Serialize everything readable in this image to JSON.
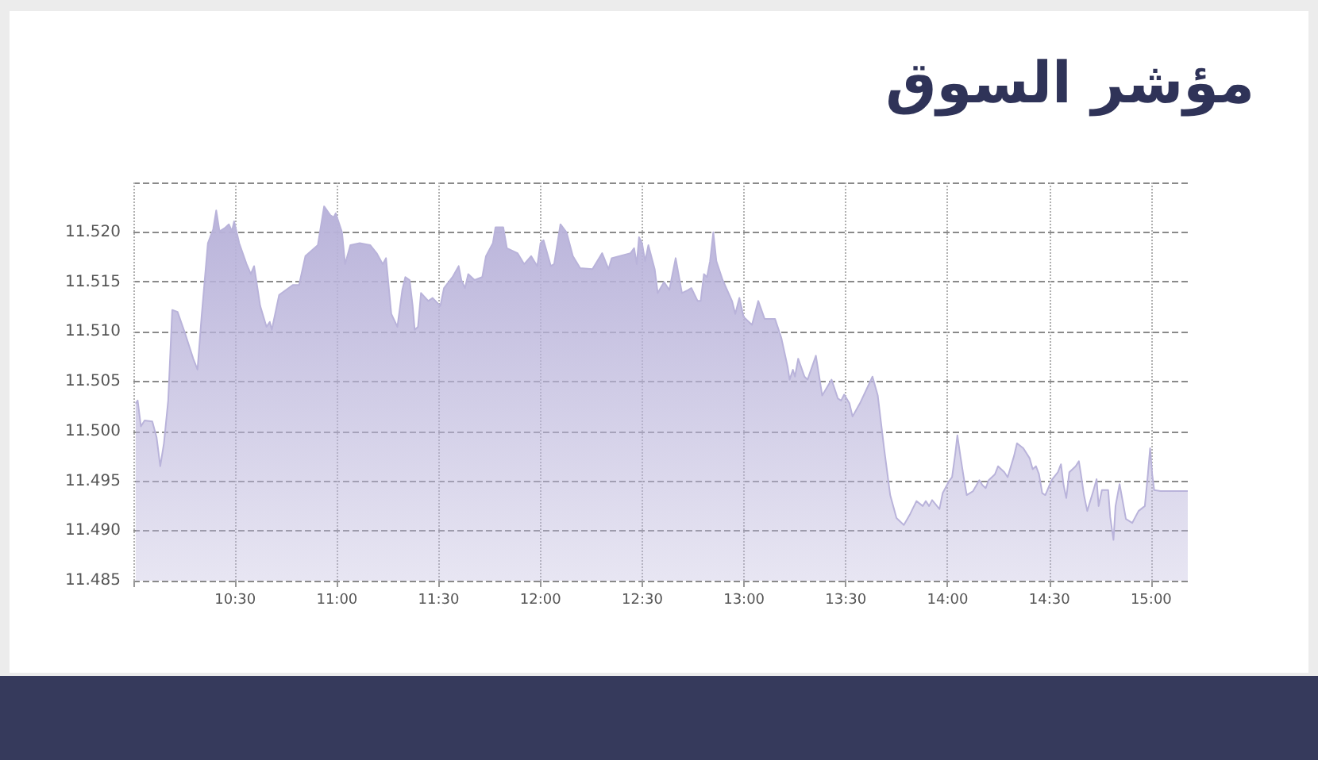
{
  "chart_data": {
    "type": "area",
    "title": "مؤشر السوق",
    "x": [
      10.011,
      10.021,
      10.037,
      10.055,
      10.093,
      10.114,
      10.132,
      10.15,
      10.171,
      10.191,
      10.217,
      10.253,
      10.294,
      10.315,
      10.335,
      10.366,
      10.392,
      10.407,
      10.423,
      10.448,
      10.469,
      10.484,
      10.495,
      10.52,
      10.556,
      10.577,
      10.593,
      10.623,
      10.654,
      10.67,
      10.68,
      10.716,
      10.783,
      10.814,
      10.845,
      10.906,
      10.937,
      10.968,
      10.984,
      10.994,
      11.025,
      11.04,
      11.066,
      11.112,
      11.164,
      11.195,
      11.225,
      11.241,
      11.267,
      11.297,
      11.321,
      11.336,
      11.357,
      11.372,
      11.382,
      11.398,
      11.413,
      11.449,
      11.47,
      11.508,
      11.526,
      11.568,
      11.598,
      11.611,
      11.629,
      11.645,
      11.676,
      11.714,
      11.732,
      11.766,
      11.779,
      11.817,
      11.835,
      11.887,
      11.92,
      11.954,
      11.984,
      12.0,
      12.015,
      12.051,
      12.067,
      12.098,
      12.128,
      12.159,
      12.195,
      12.255,
      12.303,
      12.334,
      12.35,
      12.442,
      12.46,
      12.473,
      12.484,
      12.499,
      12.514,
      12.53,
      12.561,
      12.576,
      12.607,
      12.633,
      12.664,
      12.695,
      12.725,
      12.741,
      12.772,
      12.787,
      12.803,
      12.818,
      12.833,
      12.849,
      12.864,
      12.895,
      12.941,
      12.957,
      12.977,
      12.998,
      13.039,
      13.07,
      13.101,
      13.152,
      13.183,
      13.214,
      13.224,
      13.24,
      13.25,
      13.266,
      13.297,
      13.312,
      13.353,
      13.384,
      13.43,
      13.461,
      13.477,
      13.492,
      13.518,
      13.533,
      13.569,
      13.631,
      13.657,
      13.688,
      13.718,
      13.749,
      13.785,
      13.816,
      13.847,
      13.878,
      13.893,
      13.909,
      13.924,
      13.96,
      13.976,
      14.007,
      14.022,
      14.038,
      14.048,
      14.063,
      14.079,
      14.094,
      14.125,
      14.156,
      14.171,
      14.187,
      14.202,
      14.233,
      14.248,
      14.279,
      14.295,
      14.326,
      14.341,
      14.372,
      14.403,
      14.418,
      14.434,
      14.449,
      14.465,
      14.48,
      14.511,
      14.542,
      14.557,
      14.57,
      14.583,
      14.598,
      14.629,
      14.645,
      14.655,
      14.67,
      14.686,
      14.717,
      14.732,
      14.742,
      14.758,
      14.789,
      14.799,
      14.815,
      14.825,
      14.845,
      14.876,
      14.907,
      14.938,
      14.969,
      14.984,
      14.995,
      15.005,
      15.015,
      15.046,
      15.18
    ],
    "values": [
      11.5028,
      11.5031,
      11.5005,
      11.5011,
      11.501,
      11.4994,
      11.4965,
      11.4988,
      11.5031,
      11.5122,
      11.512,
      11.5099,
      11.5073,
      11.5062,
      11.5115,
      11.5189,
      11.5203,
      11.5222,
      11.5201,
      11.5204,
      11.5208,
      11.5201,
      11.5211,
      11.5189,
      11.5168,
      11.5158,
      11.5166,
      11.5126,
      11.5105,
      11.511,
      11.5102,
      11.5137,
      11.5147,
      11.5147,
      11.5176,
      11.5187,
      11.5226,
      11.5217,
      11.5215,
      11.5219,
      11.52,
      11.5168,
      11.5187,
      11.5189,
      11.5187,
      11.5179,
      11.5168,
      11.5174,
      11.5118,
      11.5105,
      11.5142,
      11.5155,
      11.5152,
      11.5126,
      11.5102,
      11.5105,
      11.5139,
      11.5131,
      11.5134,
      11.5126,
      11.5144,
      11.5155,
      11.5166,
      11.5152,
      11.5144,
      11.5158,
      11.5152,
      11.5155,
      11.5176,
      11.5189,
      11.5205,
      11.5205,
      11.5184,
      11.5179,
      11.5168,
      11.5176,
      11.5166,
      11.5189,
      11.5192,
      11.5166,
      11.5168,
      11.5208,
      11.52,
      11.5176,
      11.5164,
      11.5163,
      11.5179,
      11.5163,
      11.5174,
      11.5179,
      11.5184,
      11.5168,
      11.5195,
      11.5189,
      11.5171,
      11.5187,
      11.5163,
      11.5139,
      11.515,
      11.5142,
      11.5174,
      11.5139,
      11.5142,
      11.5144,
      11.5131,
      11.5131,
      11.5158,
      11.5155,
      11.5171,
      11.52,
      11.5171,
      11.5152,
      11.5131,
      11.5118,
      11.5134,
      11.5115,
      11.5107,
      11.5131,
      11.5113,
      11.5113,
      11.5094,
      11.5065,
      11.5052,
      11.5062,
      11.5055,
      11.5073,
      11.5055,
      11.5052,
      11.5076,
      11.5036,
      11.5052,
      11.5033,
      11.5031,
      11.5037,
      11.5028,
      11.5015,
      11.5028,
      11.5055,
      11.5036,
      11.4983,
      11.4936,
      11.4913,
      11.4906,
      11.4917,
      11.493,
      11.4925,
      11.493,
      11.4925,
      11.4931,
      11.4922,
      11.4938,
      11.495,
      11.4954,
      11.4978,
      11.4996,
      11.4975,
      11.4954,
      11.4936,
      11.494,
      11.4951,
      11.4946,
      11.4943,
      11.4951,
      11.4957,
      11.4965,
      11.4959,
      11.4954,
      11.4975,
      11.4988,
      11.4983,
      11.4973,
      11.4962,
      11.4965,
      11.4957,
      11.4938,
      11.4936,
      11.4951,
      11.4959,
      11.4967,
      11.4946,
      11.4933,
      11.4959,
      11.4965,
      11.497,
      11.4957,
      11.4936,
      11.492,
      11.4941,
      11.4952,
      11.4925,
      11.4941,
      11.4941,
      11.4914,
      11.4891,
      11.4925,
      11.4947,
      11.4912,
      11.4908,
      11.492,
      11.4925,
      11.4957,
      11.4983,
      11.4957,
      11.4941,
      11.494,
      11.494
    ],
    "color": "#b9b3da",
    "xlim": [
      10,
      15.18
    ],
    "xticks": [
      {
        "value": 10,
        "label": null
      },
      {
        "value": 10.5,
        "label": "10:30"
      },
      {
        "value": 11,
        "label": "11:00"
      },
      {
        "value": 11.5,
        "label": "11:30"
      },
      {
        "value": 12,
        "label": "12:00"
      },
      {
        "value": 12.5,
        "label": "12:30"
      },
      {
        "value": 13,
        "label": "13:00"
      },
      {
        "value": 13.5,
        "label": "13:30"
      },
      {
        "value": 14,
        "label": "14:00"
      },
      {
        "value": 14.5,
        "label": "14:30"
      },
      {
        "value": 15,
        "label": "15:00"
      }
    ],
    "ylim": [
      11.485,
      11.525
    ],
    "yticks": [
      11.485,
      {
        "value": 11.49,
        "label": "11.490"
      },
      11.495,
      {
        "value": 11.5,
        "label": "11.500"
      },
      11.505,
      {
        "value": 11.51,
        "label": "11.510"
      },
      11.515,
      {
        "value": 11.52,
        "label": "11.520"
      },
      {
        "value": 11.525,
        "label": null
      }
    ],
    "grid": true
  }
}
